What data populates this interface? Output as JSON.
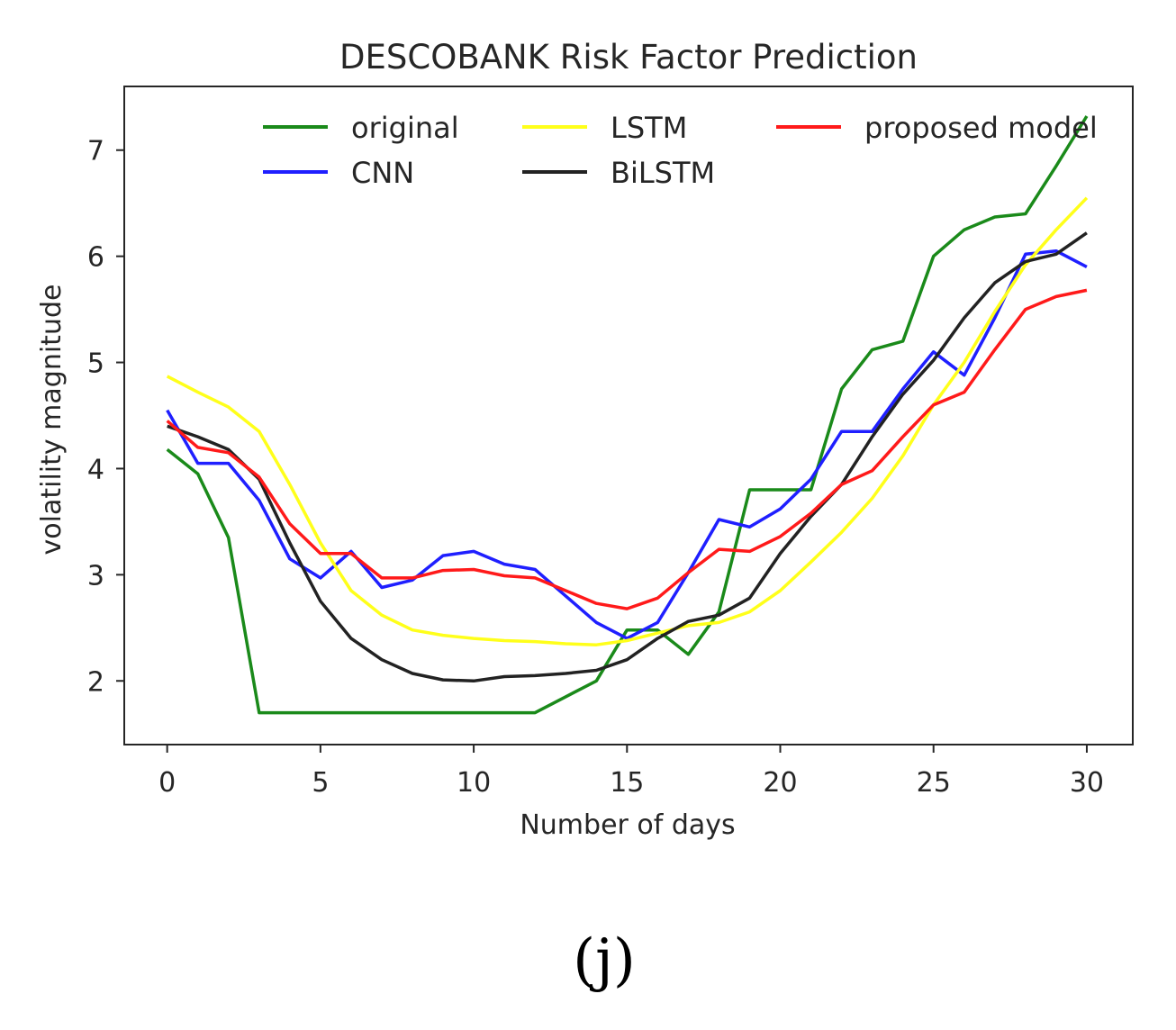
{
  "chart_data": {
    "type": "line",
    "title": "DESCOBANK Risk Factor Prediction",
    "xlabel": "Number of days",
    "ylabel": "volatility magnitude",
    "xlim": [
      -1.4,
      31.5
    ],
    "ylim": [
      1.4,
      7.6
    ],
    "xticks": [
      0,
      5,
      10,
      15,
      20,
      25,
      30
    ],
    "yticks": [
      2,
      3,
      4,
      5,
      6,
      7
    ],
    "grid": false,
    "legend_position": "top",
    "x": [
      0,
      1,
      2,
      3,
      4,
      5,
      6,
      7,
      8,
      9,
      10,
      11,
      12,
      13,
      14,
      15,
      16,
      17,
      18,
      19,
      20,
      21,
      22,
      23,
      24,
      25,
      26,
      27,
      28,
      29,
      30
    ],
    "series": [
      {
        "name": "original",
        "color": "#1a8a1a",
        "values": [
          4.18,
          3.95,
          3.35,
          1.7,
          1.7,
          1.7,
          1.7,
          1.7,
          1.7,
          1.7,
          1.7,
          1.7,
          1.7,
          1.85,
          2.0,
          2.48,
          2.48,
          2.25,
          2.65,
          3.8,
          3.8,
          3.8,
          4.75,
          5.12,
          5.2,
          6.0,
          6.25,
          6.37,
          6.4,
          6.85,
          7.32
        ]
      },
      {
        "name": "CNN",
        "color": "#1f1fff",
        "values": [
          4.55,
          4.05,
          4.05,
          3.7,
          3.15,
          2.97,
          3.22,
          2.88,
          2.95,
          3.18,
          3.22,
          3.1,
          3.05,
          2.8,
          2.55,
          2.4,
          2.55,
          3.02,
          3.52,
          3.45,
          3.62,
          3.9,
          4.35,
          4.35,
          4.75,
          5.1,
          4.88,
          5.42,
          6.02,
          6.05,
          5.9
        ]
      },
      {
        "name": "LSTM",
        "color": "#ffff1a",
        "values": [
          4.87,
          4.72,
          4.58,
          4.35,
          3.85,
          3.3,
          2.85,
          2.62,
          2.48,
          2.43,
          2.4,
          2.38,
          2.37,
          2.35,
          2.34,
          2.38,
          2.45,
          2.52,
          2.55,
          2.65,
          2.85,
          3.12,
          3.4,
          3.72,
          4.12,
          4.6,
          5.0,
          5.48,
          5.92,
          6.25,
          6.55
        ]
      },
      {
        "name": "BiLSTM",
        "color": "#222222",
        "values": [
          4.4,
          4.3,
          4.18,
          3.9,
          3.3,
          2.75,
          2.4,
          2.2,
          2.07,
          2.01,
          2.0,
          2.04,
          2.05,
          2.07,
          2.1,
          2.2,
          2.4,
          2.56,
          2.62,
          2.78,
          3.2,
          3.55,
          3.85,
          4.3,
          4.7,
          5.02,
          5.42,
          5.75,
          5.95,
          6.02,
          6.22
        ]
      },
      {
        "name": "proposed model",
        "color": "#ff1a1a",
        "values": [
          4.45,
          4.2,
          4.15,
          3.92,
          3.48,
          3.2,
          3.2,
          2.97,
          2.97,
          3.04,
          3.05,
          2.99,
          2.97,
          2.85,
          2.73,
          2.68,
          2.78,
          3.02,
          3.24,
          3.22,
          3.36,
          3.58,
          3.85,
          3.98,
          4.3,
          4.6,
          4.72,
          5.12,
          5.5,
          5.62,
          5.68
        ]
      }
    ]
  },
  "caption": "(j)"
}
